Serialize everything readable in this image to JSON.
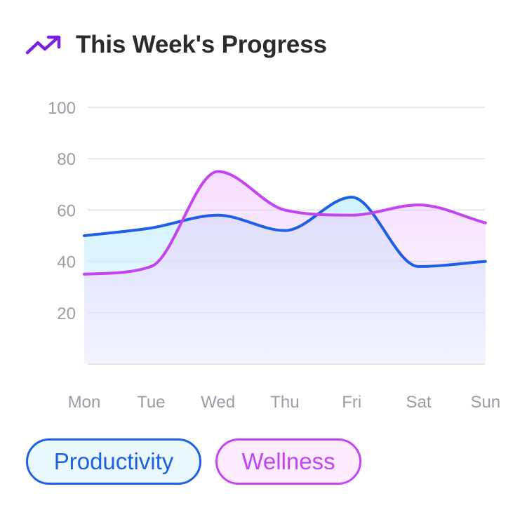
{
  "header": {
    "title": "This Week's Progress",
    "icon": "trending-up-icon",
    "icon_color": "#7b1fe0"
  },
  "chart_data": {
    "type": "area",
    "categories": [
      "Mon",
      "Tue",
      "Wed",
      "Thu",
      "Fri",
      "Sat",
      "Sun"
    ],
    "series": [
      {
        "name": "Productivity",
        "values": [
          50,
          53,
          58,
          52,
          65,
          38,
          40
        ],
        "color": "#1f5fe6"
      },
      {
        "name": "Wellness",
        "values": [
          35,
          38,
          75,
          60,
          58,
          62,
          55
        ],
        "color": "#c344f0"
      }
    ],
    "yticks": [
      20,
      40,
      60,
      80,
      100
    ],
    "ylim": [
      0,
      100
    ],
    "grid": true,
    "legend_position": "bottom-left"
  },
  "legend": {
    "items": [
      "Productivity",
      "Wellness"
    ]
  }
}
